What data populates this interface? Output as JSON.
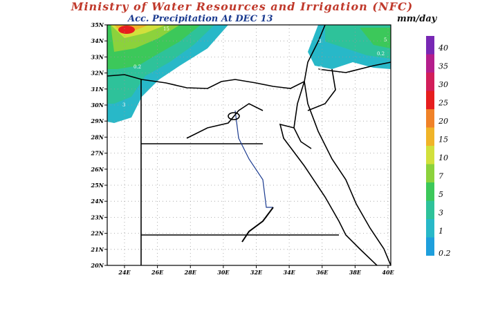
{
  "header": {
    "title": "Ministry of Water Resources and Irrigation (NFC)",
    "subtitle": "Acc. Precipitation",
    "date": "At DEC 13",
    "units": "mm/day"
  },
  "map": {
    "lat_labels": [
      "35N",
      "34N",
      "33N",
      "32N",
      "31N",
      "30N",
      "29N",
      "28N",
      "27N",
      "26N",
      "25N",
      "24N",
      "23N",
      "22N",
      "21N",
      "20N"
    ],
    "lon_labels": [
      "24E",
      "26E",
      "28E",
      "30E",
      "32E",
      "34E",
      "36E",
      "38E",
      "40E"
    ],
    "contour_labels": [
      "15",
      "0.2",
      "3",
      "0.2",
      "3",
      "0.2",
      "5",
      "0.2"
    ]
  },
  "legend": {
    "items": [
      {
        "label": "0.2",
        "color": "#1e9fdc"
      },
      {
        "label": "1",
        "color": "#28b8c8"
      },
      {
        "label": "3",
        "color": "#2ec29a"
      },
      {
        "label": "5",
        "color": "#3cc85a"
      },
      {
        "label": "7",
        "color": "#8cd23c"
      },
      {
        "label": "10",
        "color": "#d2e03c"
      },
      {
        "label": "15",
        "color": "#f0b428"
      },
      {
        "label": "20",
        "color": "#f08228"
      },
      {
        "label": "25",
        "color": "#e61e1e"
      },
      {
        "label": "30",
        "color": "#d21e5a"
      },
      {
        "label": "35",
        "color": "#b41e8c"
      },
      {
        "label": "40",
        "color": "#7828b4"
      }
    ]
  }
}
